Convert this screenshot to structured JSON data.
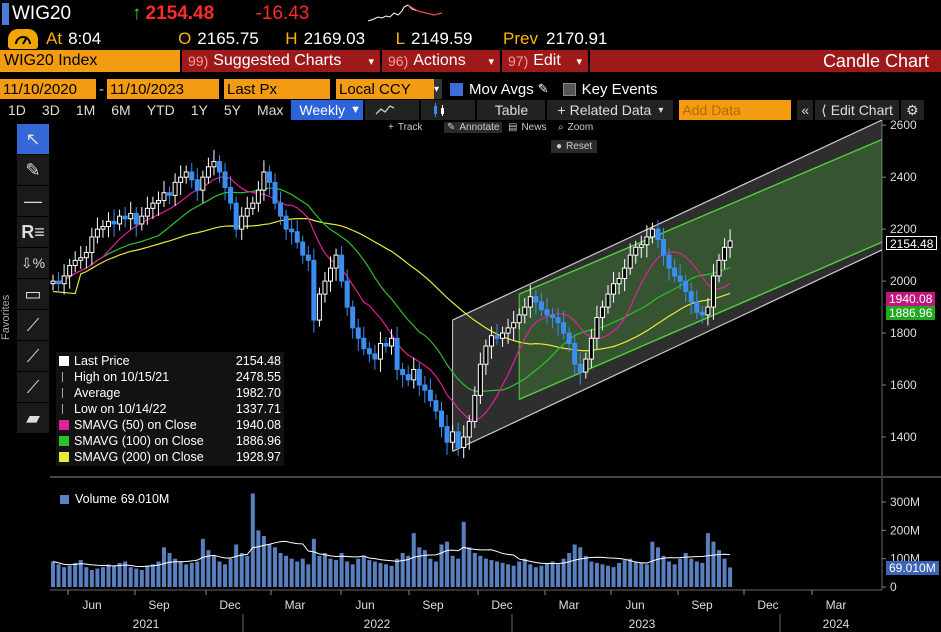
{
  "header": {
    "symbol": "WIG20",
    "arrow": "↑",
    "last": "2154.48",
    "change": "-16.43",
    "at_label": "At",
    "time": "8:04",
    "open_label": "O",
    "open": "2165.75",
    "high_label": "H",
    "high": "2169.03",
    "low_label": "L",
    "low": "2149.59",
    "prev_label": "Prev",
    "prev": "2170.91"
  },
  "menubar": {
    "security": "WIG20 Index",
    "suggested": "Suggested Charts",
    "suggested_num": "99)",
    "actions": "Actions",
    "actions_num": "96)",
    "edit": "Edit",
    "edit_num": "97)",
    "title": "Candle Chart"
  },
  "params": {
    "start_date": "11/10/2020",
    "end_date": "11/10/2023",
    "price_field": "Last Px",
    "currency": "Local CCY",
    "mov_avgs": "Mov Avgs",
    "key_events": "Key Events"
  },
  "tabs": {
    "periods": [
      "1D",
      "3D",
      "1M",
      "6M",
      "YTD",
      "1Y",
      "5Y",
      "Max"
    ],
    "frequency": "Weekly",
    "table": "Table",
    "related": "Related Data",
    "add_data_placeholder": "Add Data",
    "edit_chart": "Edit Chart"
  },
  "chart_tools": {
    "track": "Track",
    "annotate": "Annotate",
    "news": "News",
    "zoom": "Zoom",
    "reset": "Reset"
  },
  "side_label": "Favorites",
  "legend": {
    "rows": [
      {
        "label": "Last Price",
        "value": "2154.48",
        "color": "#ffffff"
      },
      {
        "label": "High on 10/15/21",
        "value": "2478.55",
        "color": ""
      },
      {
        "label": "Average",
        "value": "1982.70",
        "color": ""
      },
      {
        "label": "Low on 10/14/22",
        "value": "1337.71",
        "color": ""
      },
      {
        "label": "SMAVG (50)  on Close",
        "value": "1940.08",
        "color": "#e0209a"
      },
      {
        "label": "SMAVG (100)  on Close",
        "value": "1886.96",
        "color": "#2dc02d"
      },
      {
        "label": "SMAVG (200)  on Close",
        "value": "1928.97",
        "color": "#e8e83a"
      }
    ]
  },
  "volume": {
    "label": "Volume",
    "value": "69.010M",
    "axis": [
      "300M",
      "200M",
      "100M",
      "0"
    ]
  },
  "price_tags": {
    "last": "2154.48",
    "sma50": "1940.08",
    "sma100": "1886.96"
  },
  "colors": {
    "up": "#ffffff",
    "down": "#3b8ef0",
    "sma50": "#e0209a",
    "sma100": "#2dc02d",
    "sma200": "#e8e83a"
  },
  "chart_data": {
    "type": "candlestick",
    "frequency": "Weekly",
    "ylim": [
      1250,
      2620
    ],
    "yticks": [
      1400,
      1600,
      1800,
      2000,
      2200,
      2400,
      2600
    ],
    "month_ticks": [
      "Jun",
      "Sep",
      "Dec",
      "Mar",
      "Jun",
      "Sep",
      "Dec",
      "Mar",
      "Jun",
      "Sep",
      "Dec",
      "Mar"
    ],
    "year_labels": [
      "2021",
      "2022",
      "2023",
      "2024"
    ],
    "close_weekly": [
      2000,
      1990,
      2020,
      2060,
      2080,
      2090,
      2110,
      2170,
      2200,
      2210,
      2230,
      2220,
      2250,
      2240,
      2260,
      2220,
      2250,
      2280,
      2300,
      2310,
      2340,
      2330,
      2380,
      2400,
      2420,
      2390,
      2350,
      2400,
      2440,
      2460,
      2420,
      2360,
      2300,
      2200,
      2250,
      2280,
      2300,
      2350,
      2420,
      2380,
      2300,
      2250,
      2200,
      2190,
      2150,
      2100,
      2080,
      1850,
      1950,
      2000,
      2050,
      2100,
      2000,
      1900,
      1820,
      1780,
      1740,
      1720,
      1700,
      1760,
      1750,
      1780,
      1660,
      1640,
      1620,
      1660,
      1600,
      1580,
      1540,
      1500,
      1440,
      1380,
      1420,
      1360,
      1400,
      1460,
      1560,
      1680,
      1750,
      1790,
      1780,
      1800,
      1820,
      1840,
      1870,
      1900,
      1940,
      1920,
      1890,
      1870,
      1860,
      1840,
      1800,
      1760,
      1680,
      1650,
      1700,
      1780,
      1860,
      1900,
      1950,
      1990,
      2010,
      2050,
      2100,
      2130,
      2140,
      2170,
      2200,
      2160,
      2100,
      2050,
      2020,
      2000,
      1960,
      1920,
      1880,
      1870,
      1900,
      2020,
      2080,
      2130,
      2154.48
    ],
    "volume_millions": [
      90,
      80,
      70,
      75,
      85,
      95,
      70,
      60,
      65,
      70,
      80,
      75,
      85,
      90,
      70,
      65,
      60,
      75,
      80,
      90,
      140,
      120,
      100,
      90,
      80,
      85,
      90,
      170,
      130,
      110,
      90,
      80,
      100,
      150,
      120,
      110,
      330,
      200,
      180,
      150,
      140,
      120,
      110,
      100,
      90,
      100,
      80,
      170,
      110,
      120,
      100,
      95,
      120,
      90,
      80,
      100,
      110,
      95,
      90,
      85,
      80,
      75,
      100,
      120,
      110,
      190,
      140,
      130,
      100,
      90,
      150,
      160,
      110,
      100,
      230,
      140,
      120,
      110,
      100,
      95,
      90,
      85,
      80,
      75,
      90,
      100,
      80,
      70,
      75,
      85,
      90,
      80,
      100,
      120,
      150,
      140,
      110,
      90,
      85,
      80,
      75,
      70,
      85,
      95,
      100,
      90,
      85,
      80,
      160,
      140,
      110,
      90,
      80,
      100,
      120,
      100,
      90,
      85,
      190,
      160,
      130,
      100,
      69.01
    ]
  }
}
